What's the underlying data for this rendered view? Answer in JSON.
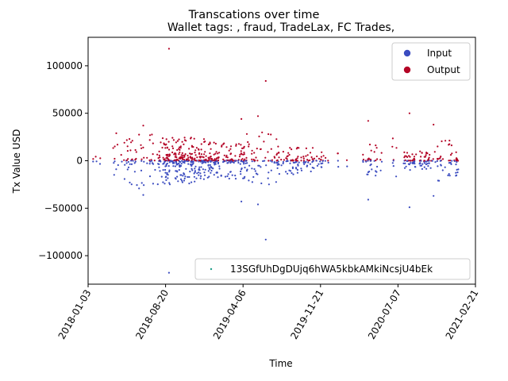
{
  "chart_data": {
    "type": "scatter",
    "title": "Transcations over time",
    "subtitle": "Wallet tags: , fraud, TradeLax, FC Trades,",
    "xlabel": "Time",
    "ylabel": "Tx Value USD",
    "x_ticks": [
      "2018-01-03",
      "2018-08-20",
      "2019-04-06",
      "2019-11-21",
      "2020-07-07",
      "2021-02-21"
    ],
    "xlim": [
      "2018-01-03",
      "2021-02-21"
    ],
    "ylim": [
      -130000,
      130000
    ],
    "y_ticks": [
      -100000,
      -50000,
      0,
      50000,
      100000
    ],
    "y_tick_labels": [
      "−100000",
      "−50000",
      "0",
      "50000",
      "100000"
    ],
    "legend_position": "top-right",
    "series": [
      {
        "name": "Input",
        "color": "#3b4cc0"
      },
      {
        "name": "Output",
        "color": "#b40426"
      }
    ],
    "wallet_legend": {
      "label": "13SGfUhDgDUjq6hWA5kbkAMkiNcsjU4bEk",
      "color": "#1f9e89",
      "position": "bottom-right"
    },
    "notable_points": [
      {
        "series": "Output",
        "x": "2018-08-30",
        "y": 118000
      },
      {
        "series": "Output",
        "x": "2019-06-12",
        "y": 84000
      },
      {
        "series": "Input",
        "x": "2019-06-12",
        "y": -83000
      },
      {
        "series": "Input",
        "x": "2018-08-30",
        "y": -118000
      },
      {
        "series": "Output",
        "x": "2020-08-10",
        "y": 50000
      },
      {
        "series": "Input",
        "x": "2020-08-10",
        "y": -49000
      },
      {
        "series": "Output",
        "x": "2019-05-20",
        "y": 47000
      },
      {
        "series": "Input",
        "x": "2019-05-20",
        "y": -46000
      },
      {
        "series": "Output",
        "x": "2019-04-01",
        "y": 44000
      },
      {
        "series": "Input",
        "x": "2019-04-01",
        "y": -43000
      },
      {
        "series": "Output",
        "x": "2020-04-10",
        "y": 42000
      },
      {
        "series": "Input",
        "x": "2020-04-10",
        "y": -41000
      },
      {
        "series": "Output",
        "x": "2018-06-15",
        "y": 37000
      },
      {
        "series": "Input",
        "x": "2018-06-15",
        "y": -36000
      },
      {
        "series": "Output",
        "x": "2020-10-20",
        "y": 38000
      },
      {
        "series": "Input",
        "x": "2020-10-20",
        "y": -37000
      }
    ],
    "clusters": [
      {
        "start": "2018-01-03",
        "end": "2018-02-10",
        "count": 3,
        "spread": 12000
      },
      {
        "start": "2018-03-15",
        "end": "2018-08-01",
        "count": 40,
        "spread": 30000
      },
      {
        "start": "2018-08-01",
        "end": "2018-12-15",
        "count": 150,
        "spread": 25000
      },
      {
        "start": "2018-12-15",
        "end": "2019-04-10",
        "count": 90,
        "spread": 20000
      },
      {
        "start": "2019-04-10",
        "end": "2019-07-15",
        "count": 35,
        "spread": 30000
      },
      {
        "start": "2019-07-15",
        "end": "2019-11-01",
        "count": 50,
        "spread": 15000
      },
      {
        "start": "2019-11-01",
        "end": "2019-12-15",
        "count": 12,
        "spread": 9000
      },
      {
        "start": "2020-01-10",
        "end": "2020-02-10",
        "count": 3,
        "spread": 8000
      },
      {
        "start": "2020-03-25",
        "end": "2020-05-20",
        "count": 20,
        "spread": 20000
      },
      {
        "start": "2020-06-20",
        "end": "2020-07-15",
        "count": 4,
        "spread": 25000
      },
      {
        "start": "2020-07-25",
        "end": "2020-10-10",
        "count": 45,
        "spread": 10000
      },
      {
        "start": "2020-10-10",
        "end": "2021-01-01",
        "count": 30,
        "spread": 22000
      }
    ]
  }
}
